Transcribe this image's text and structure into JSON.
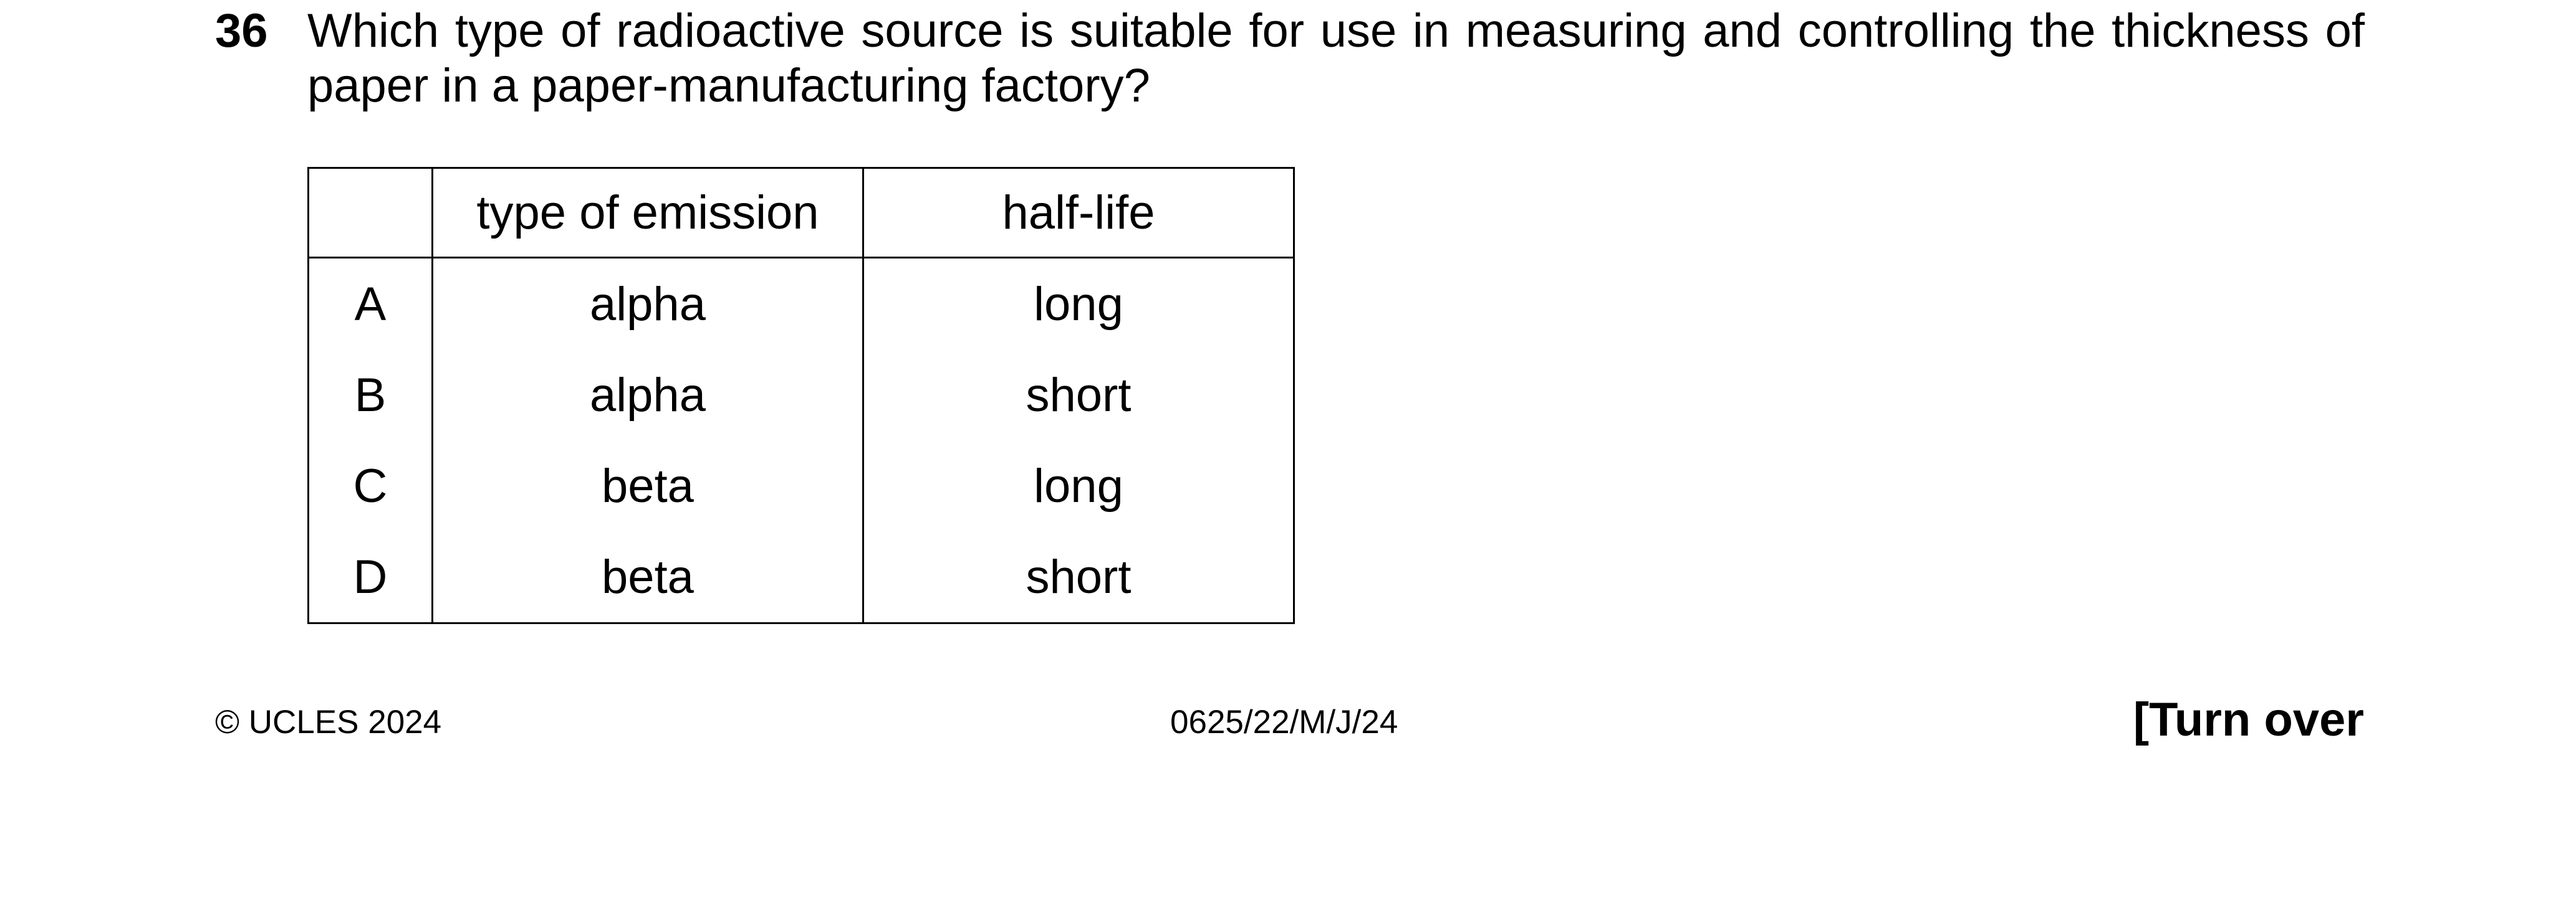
{
  "question": {
    "number": "36",
    "text": "Which type of radioactive source is suitable for use in measuring and controlling the thickness of paper in a paper-manufacturing factory?"
  },
  "table": {
    "headers": [
      "",
      "type of emission",
      "half-life"
    ],
    "rows": [
      {
        "letter": "A",
        "emission": "alpha",
        "half_life": "long"
      },
      {
        "letter": "B",
        "emission": "alpha",
        "half_life": "short"
      },
      {
        "letter": "C",
        "emission": "beta",
        "half_life": "long"
      },
      {
        "letter": "D",
        "emission": "beta",
        "half_life": "short"
      }
    ]
  },
  "footer": {
    "copyright": "© UCLES 2024",
    "code": "0625/22/M/J/24",
    "turn_over": "[Turn over"
  }
}
